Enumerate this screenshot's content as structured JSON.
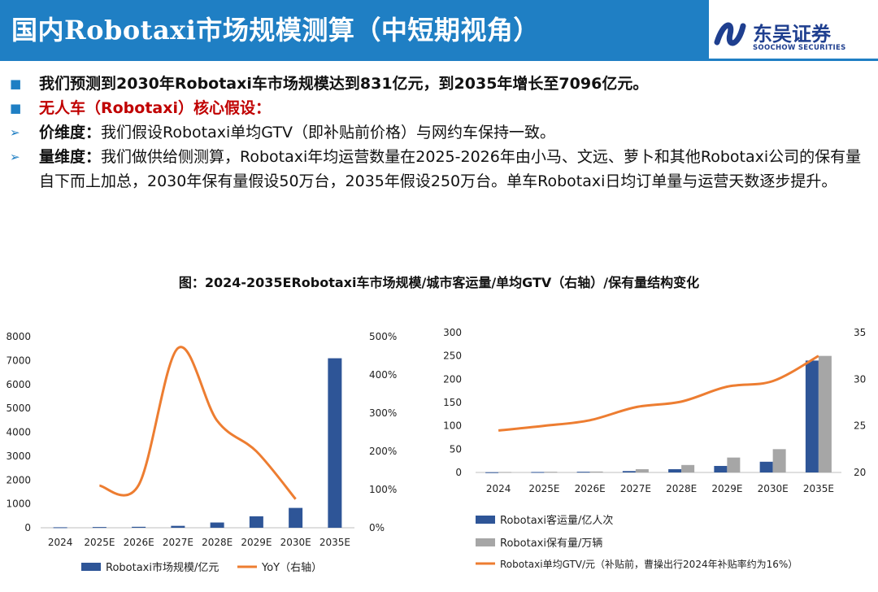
{
  "header": {
    "title": "国内Robotaxi市场规模测算（中短期视角）"
  },
  "logo": {
    "name": "东吴证券",
    "sub": "SOOCHOW SECURITIES"
  },
  "bullets": {
    "b1": "我们预测到2030年Robotaxi车市场规模达到831亿元，到2035年增长至7096亿元。",
    "b2": "无人车（Robotaxi）核心假设：",
    "b3_label": "价维度：",
    "b3_text": "我们假设Robotaxi单均GTV（即补贴前价格）与网约车保持一致。",
    "b4_label": "量维度：",
    "b4_text": "我们做供给侧测算，Robotaxi年均运营数量在2025-2026年由小马、文远、萝卜和其他Robotaxi公司的保有量自下而上加总，2030年保有量假设50万台，2035年假设250万台。单车Robotaxi日均订单量与运营天数逐步提升。"
  },
  "caption": "图：2024-2035ERobotaxi车市场规模/城市客运量/单均GTV（右轴）/保有量结构变化",
  "colors": {
    "blue": "#2e5597",
    "gray": "#a6a6a6",
    "orange": "#ed7d31"
  },
  "chart_data": [
    {
      "type": "bar",
      "categories": [
        "2024",
        "2025E",
        "2026E",
        "2027E",
        "2028E",
        "2029E",
        "2030E",
        "2035E"
      ],
      "series": [
        {
          "name": "Robotaxi市场规模/亿元",
          "type": "bar",
          "axis": "left",
          "values": [
            20,
            30,
            40,
            80,
            220,
            480,
            831,
            7096
          ]
        },
        {
          "name": "YoY（右轴）",
          "type": "line",
          "axis": "right",
          "values": [
            null,
            110,
            112,
            470,
            280,
            200,
            75,
            null
          ]
        }
      ],
      "left_axis": {
        "min": 0,
        "max": 8000,
        "ticks": [
          "0",
          "1000",
          "2000",
          "3000",
          "4000",
          "5000",
          "6000",
          "7000",
          "8000"
        ]
      },
      "right_axis": {
        "min": 0,
        "max": 500,
        "ticks": [
          "0%",
          "100%",
          "200%",
          "300%",
          "400%",
          "500%"
        ]
      },
      "legend": [
        "Robotaxi市场规模/亿元",
        "YoY（右轴）"
      ]
    },
    {
      "type": "bar",
      "categories": [
        "2024",
        "2025E",
        "2026E",
        "2027E",
        "2028E",
        "2029E",
        "2030E",
        "2035E"
      ],
      "series": [
        {
          "name": "Robotaxi客运量/亿人次",
          "type": "bar",
          "axis": "left",
          "values": [
            0.5,
            1,
            1.5,
            3,
            7,
            14,
            23,
            240
          ]
        },
        {
          "name": "Robotaxi保有量/万辆",
          "type": "bar",
          "axis": "left",
          "values": [
            1,
            1.5,
            2,
            7,
            16,
            32,
            50,
            250
          ]
        },
        {
          "name": "Robotaxi单均GTV/元（补贴前，曹操出行2024年补贴率约为16%）",
          "type": "line",
          "axis": "right",
          "values": [
            24.5,
            25,
            25.6,
            27,
            27.6,
            29.2,
            29.8,
            32.5
          ]
        }
      ],
      "left_axis": {
        "min": 0,
        "max": 300,
        "ticks": [
          "0",
          "50",
          "100",
          "150",
          "200",
          "250",
          "300"
        ]
      },
      "right_axis": {
        "min": 20,
        "max": 35,
        "ticks": [
          "20",
          "25",
          "30",
          "35"
        ]
      },
      "legend": [
        "Robotaxi客运量/亿人次",
        "Robotaxi保有量/万辆",
        "Robotaxi单均GTV/元（补贴前，曹操出行2024年补贴率约为16%）"
      ]
    }
  ]
}
